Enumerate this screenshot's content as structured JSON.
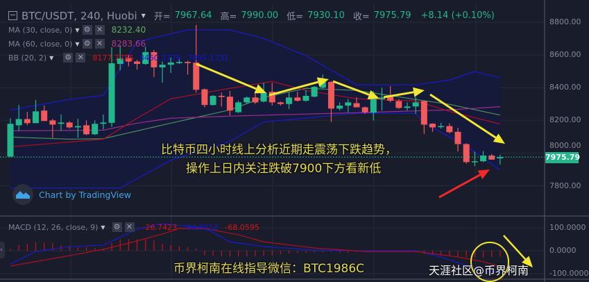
{
  "header": {
    "symbol": "BTC/USDT, 240, Huobi",
    "open_label": "开=",
    "open": "7967.64",
    "high_label": "高=",
    "high": "7990.00",
    "low_label": "低=",
    "low": "7930.10",
    "close_label": "收=",
    "close": "7975.79",
    "change": "+8.14 (+0.10%)"
  },
  "indicators": [
    {
      "label": "MA (30, close, 0)",
      "values": [
        "8232.40"
      ],
      "colors": [
        "#5fae5f"
      ]
    },
    {
      "label": "MA (60, close, 0)",
      "values": [
        "8283.66"
      ],
      "colors": [
        "#b2338f"
      ]
    },
    {
      "label": "BB (20, 2)",
      "values": [
        "8177.7755",
        "8460.3779",
        "7895.1731"
      ],
      "colors": [
        "#e01010",
        "#1515d0",
        "#1515d0"
      ]
    }
  ],
  "macd_legend": {
    "label": "MACD (12, 26, close, 9)",
    "values": [
      "-26.7423",
      "-94.8018",
      "-68.0595"
    ],
    "colors": [
      "#e01010",
      "#1515d0",
      "#e01010"
    ]
  },
  "icons": {
    "settings": "gear-icon",
    "remove": "close-icon",
    "dropdown": "caret-down-icon",
    "logo": "tradingview-logo-icon",
    "collapse": "chevron-left-icon"
  },
  "branding": "Chart by TradingView",
  "last_price_label": "7975.79",
  "price_axis": [
    "8800.00",
    "8600.00",
    "8400.00",
    "8200.00",
    "8000.00",
    "7800.00"
  ],
  "macd_axis": [
    "100.0000",
    "0.0000",
    "-100.0000"
  ],
  "annotations": {
    "line1": "比特币四小时线上分析近期走震荡下跌趋势，",
    "line2": "操作上日内关注跌破7900下方看新低",
    "contact": "币界柯南在线指导微信：BTC1986C",
    "watermark": "天涯社区@币界柯南"
  },
  "colors": {
    "up": "#22b88c",
    "down": "#f05a5a",
    "background": "#191c2a",
    "bb_fill": "#151a3c",
    "annotation": "#f2e735",
    "arrow_red": "#f02a2a"
  },
  "chart_data": [
    {
      "type": "candlestick",
      "title": "BTC/USDT, 240, Huobi",
      "ylim": [
        7700,
        8820
      ],
      "yticks": [
        8800,
        8600,
        8400,
        8200,
        8000,
        7800
      ],
      "grid": true,
      "ohlc": [
        [
          7979,
          8213,
          7975,
          8179
        ],
        [
          8170,
          8294,
          8136,
          8208
        ],
        [
          8208,
          8252,
          8170,
          8183
        ],
        [
          8183,
          8325,
          8183,
          8255
        ],
        [
          8260,
          8291,
          8196,
          8196
        ],
        [
          8200,
          8209,
          8094,
          8174
        ],
        [
          8179,
          8236,
          8136,
          8187
        ],
        [
          8187,
          8195,
          8150,
          8157
        ],
        [
          8157,
          8209,
          8094,
          8165
        ],
        [
          8170,
          8200,
          8110,
          8115
        ],
        [
          8115,
          8200,
          8110,
          8179
        ],
        [
          8179,
          8236,
          8145,
          8187
        ],
        [
          8185,
          8647,
          8160,
          8549
        ],
        [
          8545,
          8660,
          8506,
          8578
        ],
        [
          8580,
          8600,
          8530,
          8560
        ],
        [
          8560,
          8570,
          8510,
          8545
        ],
        [
          8545,
          8650,
          8540,
          8617
        ],
        [
          8617,
          8630,
          8465,
          8524
        ],
        [
          8524,
          8560,
          8430,
          8540
        ],
        [
          8540,
          8585,
          8490,
          8554
        ],
        [
          8550,
          8580,
          8545,
          8557
        ],
        [
          8557,
          8565,
          8480,
          8550
        ],
        [
          8553,
          8783,
          8370,
          8387
        ],
        [
          8390,
          8395,
          8280,
          8294
        ],
        [
          8294,
          8355,
          8290,
          8350
        ],
        [
          8350,
          8370,
          8285,
          8343
        ],
        [
          8345,
          8380,
          8230,
          8260
        ],
        [
          8250,
          8320,
          8245,
          8310
        ],
        [
          8310,
          8345,
          8300,
          8340
        ],
        [
          8340,
          8380,
          8300,
          8310
        ],
        [
          8315,
          8430,
          8310,
          8370
        ],
        [
          8375,
          8430,
          8290,
          8310
        ],
        [
          8310,
          8315,
          8290,
          8300
        ],
        [
          8300,
          8370,
          8270,
          8340
        ],
        [
          8340,
          8375,
          8315,
          8320
        ],
        [
          8320,
          8385,
          8315,
          8350
        ],
        [
          8345,
          8410,
          8340,
          8405
        ],
        [
          8400,
          8480,
          8395,
          8435
        ],
        [
          8435,
          8440,
          8190,
          8272
        ],
        [
          8272,
          8310,
          8260,
          8290
        ],
        [
          8290,
          8330,
          8250,
          8310
        ],
        [
          8305,
          8340,
          8280,
          8280
        ],
        [
          8280,
          8285,
          8240,
          8250
        ],
        [
          8247,
          8380,
          8200,
          8330
        ],
        [
          8330,
          8400,
          8260,
          8340
        ],
        [
          8350,
          8410,
          8310,
          8320
        ],
        [
          8318,
          8330,
          8270,
          8276
        ],
        [
          8276,
          8310,
          8260,
          8285
        ],
        [
          8285,
          8345,
          8240,
          8310
        ],
        [
          8318,
          8320,
          8117,
          8174
        ],
        [
          8180,
          8182,
          8130,
          8157
        ],
        [
          8160,
          8185,
          8150,
          8165
        ],
        [
          8165,
          8182,
          8120,
          8128
        ],
        [
          8130,
          8155,
          8010,
          8055
        ],
        [
          8055,
          8060,
          7935,
          7945
        ],
        [
          7945,
          8010,
          7920,
          7950
        ],
        [
          7950,
          8012,
          7945,
          7985
        ],
        [
          7985,
          7995,
          7960,
          7960
        ],
        [
          7967.64,
          7990,
          7930.1,
          7975.79
        ]
      ],
      "series": [
        {
          "name": "MA (30, close, 0)",
          "points": [
            [
              0,
              8098
            ],
            [
              7,
              8085
            ],
            [
              11,
              8088
            ],
            [
              19,
              8183
            ],
            [
              26,
              8264
            ],
            [
              30,
              8340
            ],
            [
              35,
              8396
            ],
            [
              41,
              8383
            ],
            [
              48,
              8328
            ],
            [
              52,
              8298
            ],
            [
              58,
              8232.4
            ]
          ]
        },
        {
          "name": "MA (60, close, 0)",
          "points": [
            [
              0,
              8136
            ],
            [
              11,
              8140
            ],
            [
              15,
              8183
            ],
            [
              19,
              8213
            ],
            [
              26,
              8226
            ],
            [
              41,
              8247
            ],
            [
              52,
              8264
            ],
            [
              58,
              8283.66
            ]
          ]
        },
        {
          "name": "BB basis",
          "points": [
            [
              0,
              8038
            ],
            [
              11,
              8085
            ],
            [
              15,
              8213
            ],
            [
              19,
              8332
            ],
            [
              26,
              8396
            ],
            [
              31,
              8438
            ],
            [
              35,
              8383
            ],
            [
              41,
              8332
            ],
            [
              48,
              8319
            ],
            [
              52,
              8255
            ],
            [
              58,
              8177.78
            ]
          ]
        },
        {
          "name": "BB upper",
          "points": [
            [
              0,
              8264
            ],
            [
              7,
              8328
            ],
            [
              11,
              8353
            ],
            [
              15,
              8680
            ],
            [
              21,
              8753
            ],
            [
              26,
              8753
            ],
            [
              30,
              8700
            ],
            [
              35,
              8596
            ],
            [
              41,
              8417
            ],
            [
              48,
              8417
            ],
            [
              52,
              8447
            ],
            [
              55,
              8498
            ],
            [
              58,
              8460.38
            ]
          ]
        },
        {
          "name": "BB lower",
          "points": [
            [
              0,
              7787
            ],
            [
              13,
              7787
            ],
            [
              19,
              7957
            ],
            [
              26,
              8072
            ],
            [
              30,
              8190
            ],
            [
              41,
              8243
            ],
            [
              48,
              8243
            ],
            [
              49,
              8183
            ],
            [
              54,
              8043
            ],
            [
              58,
              7895.17
            ]
          ]
        }
      ]
    },
    {
      "type": "bar",
      "title": "MACD (12, 26, close, 9)",
      "ylim": [
        -100,
        100
      ],
      "yticks": [
        100,
        0,
        -100
      ],
      "histogram": [
        8,
        25,
        30,
        37,
        37,
        35,
        25,
        20,
        15,
        17,
        13,
        10,
        35,
        50,
        50,
        50,
        50,
        45,
        30,
        25,
        20,
        15,
        10,
        -20,
        -22,
        -24,
        -25,
        -25,
        -24,
        -23,
        -22,
        -20,
        -15,
        -12,
        -10,
        -8,
        -6,
        -5,
        -4,
        -8,
        -8,
        -6,
        -5,
        -4,
        -3,
        -3,
        -4,
        -5,
        -6,
        -15,
        -18,
        -20,
        -22,
        -25,
        -28,
        -30,
        -30,
        -28,
        -26.74
      ],
      "series": [
        {
          "name": "MACD",
          "points": [
            [
              0,
              -58
            ],
            [
              3,
              -3
            ],
            [
              7,
              18
            ],
            [
              11,
              24
            ],
            [
              15,
              94
            ],
            [
              18,
              118
            ],
            [
              23,
              100
            ],
            [
              26,
              39
            ],
            [
              30,
              18
            ],
            [
              36,
              3
            ],
            [
              42,
              0
            ],
            [
              48,
              0
            ],
            [
              51,
              -27
            ],
            [
              53,
              -52
            ],
            [
              56,
              -88
            ],
            [
              58,
              -94.8
            ]
          ]
        },
        {
          "name": "Signal",
          "points": [
            [
              0,
              -67
            ],
            [
              7,
              -21
            ],
            [
              11,
              6
            ],
            [
              14,
              33
            ],
            [
              18,
              73
            ],
            [
              20,
              97
            ],
            [
              23,
              97
            ],
            [
              27,
              70
            ],
            [
              30,
              39
            ],
            [
              36,
              12
            ],
            [
              42,
              -3
            ],
            [
              48,
              -3
            ],
            [
              53,
              -27
            ],
            [
              56,
              -48
            ],
            [
              58,
              -68.06
            ]
          ]
        }
      ]
    }
  ]
}
